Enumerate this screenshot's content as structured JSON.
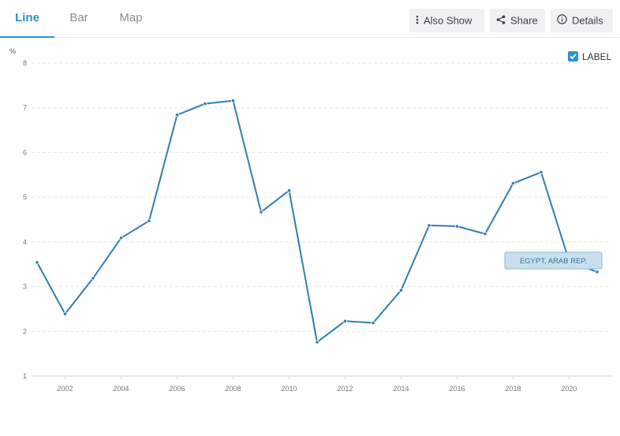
{
  "tabs": [
    {
      "label": "Line"
    },
    {
      "label": "Bar"
    },
    {
      "label": "Map"
    }
  ],
  "toolbar": {
    "also_show_label": "Also Show",
    "also_show_icon": "vertical-dots-icon",
    "share_label": "Share",
    "share_icon": "share-icon",
    "details_label": "Details",
    "details_icon": "info-circle-icon"
  },
  "label_toggle": {
    "text": "LABEL",
    "checked": true
  },
  "colors": {
    "accent": "#2f8fd1",
    "line": "#2e7fb0",
    "label_bg": "#c9dfef"
  },
  "chart_data": {
    "type": "line",
    "ylabel": "%",
    "ylim": [
      1,
      8
    ],
    "yticks": [
      "1",
      "2",
      "3",
      "4",
      "5",
      "6",
      "7",
      "8"
    ],
    "xlim": [
      2001,
      2021
    ],
    "xticks": [
      "2002",
      "2004",
      "2006",
      "2008",
      "2010",
      "2012",
      "2014",
      "2016",
      "2018",
      "2020"
    ],
    "grid": true,
    "series": [
      {
        "name": "EGYPT, ARAB REP.",
        "x": [
          2001,
          2002,
          2003,
          2004,
          2005,
          2006,
          2007,
          2008,
          2009,
          2010,
          2011,
          2012,
          2013,
          2014,
          2015,
          2016,
          2017,
          2018,
          2019,
          2020,
          2021
        ],
        "values": [
          3.54,
          2.39,
          3.19,
          4.09,
          4.47,
          6.84,
          7.09,
          7.16,
          4.67,
          5.15,
          1.76,
          2.23,
          2.19,
          2.92,
          4.37,
          4.35,
          4.18,
          5.31,
          5.56,
          3.57,
          3.33
        ]
      }
    ]
  }
}
